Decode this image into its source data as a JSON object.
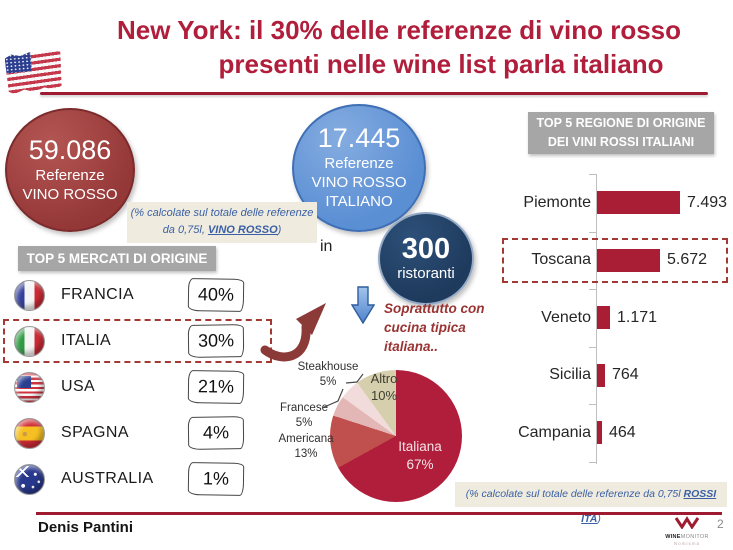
{
  "slide": {
    "title_line1": "New York: il 30% delle referenze di vino rosso",
    "title_line2": "presenti nelle wine list parla italiano",
    "author": "Denis Pantini",
    "page_number": "2"
  },
  "logo": {
    "brand_bold": "WINE",
    "brand_light": "MONITOR",
    "sub": "Nomisma"
  },
  "bubbles": {
    "red": {
      "value": "59.086",
      "line2": "Referenze",
      "line3": "VINO ROSSO"
    },
    "blue": {
      "value": "17.445",
      "line2": "Referenze",
      "line3": "VINO ROSSO",
      "line4": "ITALIANO"
    },
    "connector": "in",
    "navy": {
      "value": "300",
      "label": "ristoranti"
    }
  },
  "notes": {
    "top_line1": "(% calcolate sul totale delle referenze",
    "top_line2_prefix": "da 0,75l, ",
    "top_line2_highlight": "VINO ROSSO",
    "top_line2_suffix": ")",
    "bottom_prefix": "(% calcolate sul totale delle referenze da 0,75l ",
    "bottom_highlight": "ROSSI ITA",
    "bottom_suffix": ")"
  },
  "caption": {
    "line1": "Soprattutto con",
    "line2": "cucina tipica",
    "line3": "italiana.."
  },
  "chart_data": [
    {
      "type": "pie",
      "title": "",
      "labels": [
        "Italiana",
        "Americana",
        "Francese",
        "Steakhouse",
        "Altro"
      ],
      "values": [
        67,
        13,
        5,
        5,
        10
      ],
      "values_display": [
        "67%",
        "13%",
        "5%",
        "5%",
        "10%"
      ],
      "unit": "%",
      "colors": [
        "#b01e3c",
        "#c0504d",
        "#e3b7b6",
        "#f2dcdb",
        "#d6cfae"
      ],
      "start_angle_deg": 0,
      "direction": "clockwise",
      "label_placement": {
        "inside": [
          "Italiana",
          "Altro"
        ],
        "outside": [
          "Americana",
          "Francese",
          "Steakhouse"
        ]
      }
    },
    {
      "type": "bar",
      "orientation": "horizontal",
      "title_line1": "TOP 5 REGIONE DI ORIGINE",
      "title_line2": "DEI VINI ROSSI ITALIANI",
      "categories": [
        "Piemonte",
        "Toscana",
        "Veneto",
        "Sicilia",
        "Campania"
      ],
      "values": [
        7493,
        5672,
        1171,
        764,
        464
      ],
      "values_display": [
        "7.493",
        "5.672",
        "1.171",
        "764",
        "464"
      ],
      "bar_color": "#a91e35",
      "highlighted_category": "Toscana",
      "xlim": [
        0,
        8000
      ],
      "gridlines": false,
      "legend": false
    },
    {
      "type": "table",
      "title": "TOP 5 MERCATI DI ORIGINE",
      "categories": [
        "FRANCIA",
        "ITALIA",
        "USA",
        "SPAGNA",
        "AUSTRALIA"
      ],
      "values_display": [
        "40%",
        "30%",
        "21%",
        "4%",
        "1%"
      ],
      "flags": [
        "france",
        "italy",
        "usa",
        "spain",
        "australia"
      ],
      "highlighted_category": "ITALIA"
    }
  ],
  "colors": {
    "accent_red": "#b01e3c",
    "bar_red": "#a91e35",
    "header_gray": "#a6a6a6",
    "note_blue": "#3a5fa5",
    "note_bg": "#efecdf",
    "bubble_red": "#943737",
    "bubble_blue": "#5b8fd4",
    "bubble_navy": "#1e3a5c"
  }
}
